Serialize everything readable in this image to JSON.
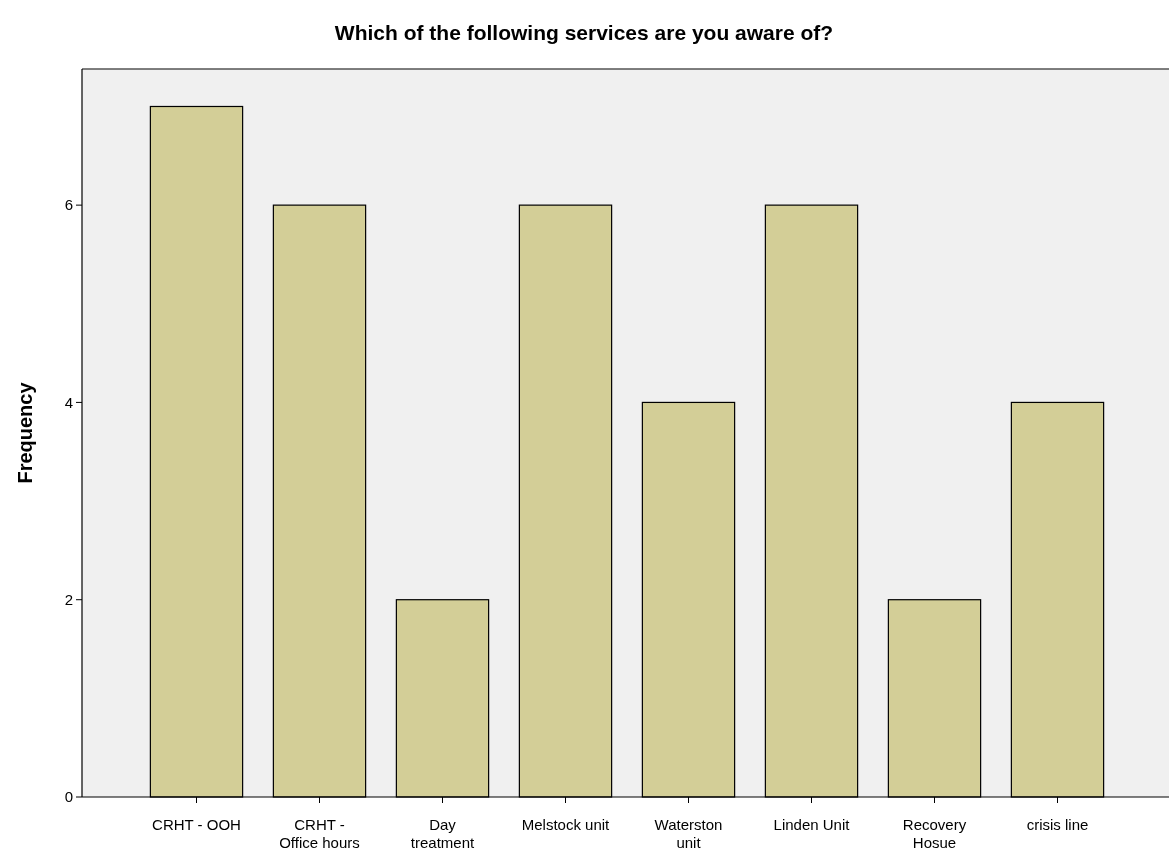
{
  "chart_data": {
    "type": "bar",
    "title": "Which of the following services are you aware of?",
    "ylabel": "Frequency",
    "categories": [
      "CRHT - OOH",
      "CRHT - Office hours",
      "Day treatment",
      "Melstock unit",
      "Waterston unit",
      "Linden Unit",
      "Recovery Hosue",
      "crisis line"
    ],
    "values": [
      7,
      6,
      2,
      6,
      4,
      6,
      2,
      4
    ],
    "color": "#d3ce97",
    "ylim": [
      0,
      7.38
    ],
    "yticks": [
      0,
      2,
      4,
      6
    ]
  }
}
